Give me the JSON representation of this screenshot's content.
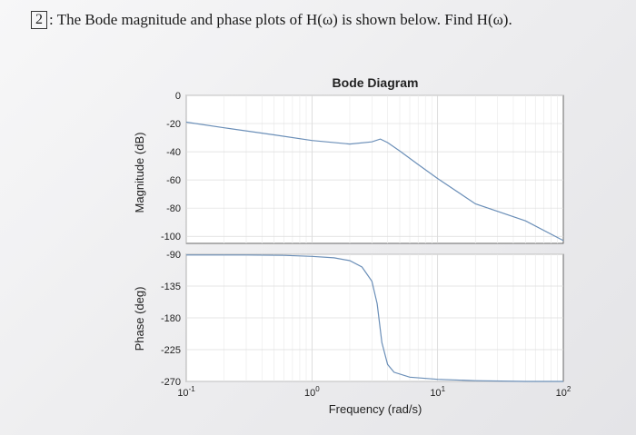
{
  "problem": {
    "number": "2",
    "separator": ":",
    "text": "The Bode magnitude and phase plots of H(ω) is shown below. Find H(ω)."
  },
  "chart_data": [
    {
      "type": "line",
      "title": "Bode Diagram",
      "xlabel": "Frequency (rad/s)",
      "ylabel": "Magnitude (dB)",
      "xscale": "log",
      "xlim": [
        0.1,
        100
      ],
      "ylim": [
        -105,
        0
      ],
      "yticks": [
        0,
        -20,
        -40,
        -60,
        -80,
        -100
      ],
      "xticks": [
        "10^-1",
        "10^0",
        "10^1",
        "10^2"
      ],
      "grid": true,
      "series": [
        {
          "x": [
            0.1,
            0.2,
            0.5,
            1,
            2,
            3,
            3.5,
            4,
            5,
            7,
            10,
            20,
            50,
            100
          ],
          "y": [
            -19,
            -23,
            -28,
            -32,
            -34.5,
            -33,
            -31,
            -33.5,
            -39.5,
            -49,
            -59,
            -77,
            -89,
            -103
          ]
        }
      ]
    },
    {
      "type": "line",
      "xlabel": "Frequency (rad/s)",
      "ylabel": "Phase (deg)",
      "xscale": "log",
      "xlim": [
        0.1,
        100
      ],
      "ylim": [
        -270,
        -90
      ],
      "yticks": [
        -90,
        -135,
        -180,
        -225,
        -270
      ],
      "xticks": [
        "10^-1",
        "10^0",
        "10^1",
        "10^2"
      ],
      "grid": true,
      "series": [
        {
          "x": [
            0.1,
            0.3,
            0.6,
            1,
            1.5,
            2,
            2.5,
            3,
            3.3,
            3.6,
            4,
            4.5,
            6,
            10,
            20,
            50,
            100
          ],
          "y": [
            -91,
            -91,
            -91.5,
            -93,
            -95,
            -99,
            -108,
            -128,
            -160,
            -215,
            -246,
            -257,
            -264,
            -267,
            -269,
            -270,
            -270
          ]
        }
      ]
    }
  ]
}
